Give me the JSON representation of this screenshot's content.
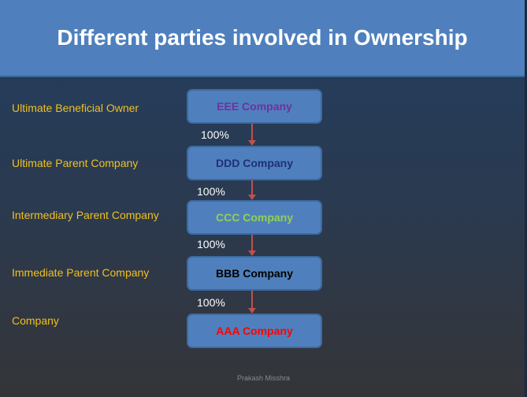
{
  "title": "Different parties involved in Ownership",
  "levels": [
    {
      "role": "Ultimate Beneficial Owner",
      "company": "EEE Company",
      "color": "#7030a0"
    },
    {
      "role": "Ultimate Parent Company",
      "company": "DDD Company",
      "color": "#1f2f7a"
    },
    {
      "role": "Intermediary Parent Company",
      "company": "CCC Company",
      "color": "#92d050"
    },
    {
      "role": "Immediate Parent Company",
      "company": "BBB Company",
      "color": "#000000"
    },
    {
      "role": "Company",
      "company": "AAA Company",
      "color": "#ff0000"
    }
  ],
  "ownership": [
    "100%",
    "100%",
    "100%",
    "100%"
  ],
  "credit": "Prakash Misshra"
}
